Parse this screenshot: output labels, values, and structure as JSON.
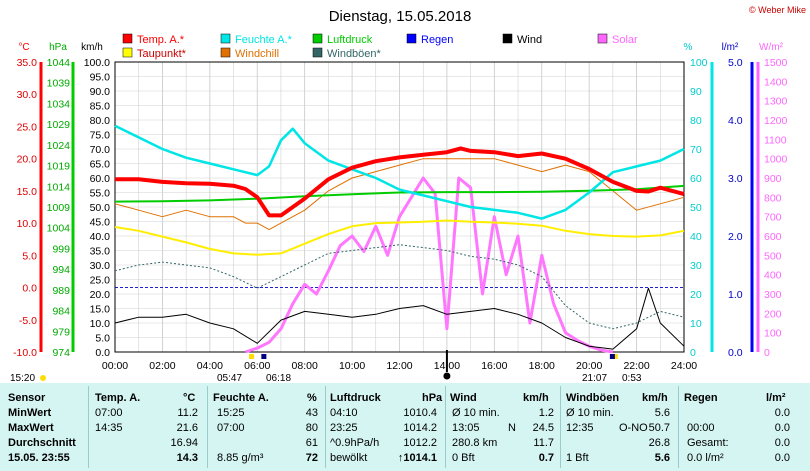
{
  "title": "Dienstag, 15.05.2018",
  "brand": "© Weber Mike",
  "legend": [
    {
      "label": "Temp. A.*",
      "color": "#ff0000"
    },
    {
      "label": "Feuchte A.*",
      "color": "#00e5e5"
    },
    {
      "label": "Luftdruck",
      "color": "#00cc00"
    },
    {
      "label": "Regen",
      "color": "#0000ff"
    },
    {
      "label": "Wind",
      "color": "#000000"
    },
    {
      "label": "Solar",
      "color": "#ff66ff"
    },
    {
      "label": "Taupunkt*",
      "color": "#ffff00"
    },
    {
      "label": "Windchill",
      "color": "#e07000"
    },
    {
      "label": "Windböen*",
      "color": "#336666"
    }
  ],
  "units": {
    "c": "°C",
    "hpa": "hPa",
    "kmh": "km/h",
    "pct": "%",
    "lm2": "l/m²",
    "wm2": "W/m²"
  },
  "chart_data": {
    "type": "line",
    "x_label_ticks": [
      "00:00",
      "02:00",
      "04:00",
      "06:00",
      "08:00",
      "10:00",
      "12:00",
      "14:00",
      "16:00",
      "18:00",
      "20:00",
      "22:00",
      "24:00"
    ],
    "axes": {
      "temp_c": {
        "ticks": [
          "35.0",
          "30.0",
          "25.0",
          "20.0",
          "15.0",
          "10.0",
          "5.0",
          "0.0",
          "-5.0",
          "-10.0"
        ],
        "range": [
          -10,
          35
        ]
      },
      "pressure_hpa": {
        "ticks": [
          "1044",
          "1039",
          "1034",
          "1029",
          "1024",
          "1019",
          "1014",
          "1009",
          "1004",
          "999",
          "994",
          "989",
          "984",
          "979",
          "974"
        ],
        "range": [
          974,
          1044
        ]
      },
      "wind_kmh": {
        "ticks": [
          "100.0",
          "95.0",
          "90.0",
          "85.0",
          "80.0",
          "75.0",
          "70.0",
          "65.0",
          "60.0",
          "55.0",
          "50.0",
          "45.0",
          "40.0",
          "35.0",
          "30.0",
          "25.0",
          "20.0",
          "15.0",
          "10.0",
          "5.0",
          "0.0"
        ],
        "range": [
          0,
          100
        ]
      },
      "humidity_pct": {
        "ticks": [
          "100",
          "90",
          "80",
          "70",
          "60",
          "50",
          "40",
          "30",
          "20",
          "10",
          "0"
        ],
        "range": [
          0,
          100
        ]
      },
      "rain_lm2": {
        "ticks": [
          "5.0",
          "4.0",
          "3.0",
          "2.0",
          "1.0",
          "0.0"
        ],
        "range": [
          0,
          5
        ]
      },
      "solar_wm2": {
        "ticks": [
          "1500",
          "1400",
          "1300",
          "1200",
          "1100",
          "1000",
          "900",
          "800",
          "700",
          "600",
          "500",
          "400",
          "300",
          "200",
          "100",
          "0"
        ],
        "range": [
          0,
          1500
        ]
      }
    },
    "series": [
      {
        "name": "Temp. A.*",
        "axis": "temp_c",
        "x": [
          0,
          1,
          2,
          3,
          4,
          5,
          5.5,
          6,
          6.5,
          7,
          8,
          9,
          10,
          11,
          12,
          13,
          14,
          14.58,
          15,
          16,
          17,
          18,
          19,
          20,
          21,
          22,
          22.5,
          23,
          24
        ],
        "y": [
          16.8,
          16.8,
          16.4,
          16.2,
          16.1,
          15.8,
          15.3,
          14.0,
          11.2,
          11.2,
          13.8,
          16.8,
          18.6,
          19.6,
          20.2,
          20.6,
          21.0,
          21.6,
          21.2,
          21.0,
          20.4,
          20.8,
          20.0,
          18.4,
          16.4,
          15.0,
          14.9,
          15.5,
          14.5
        ]
      },
      {
        "name": "Feuchte A.*",
        "axis": "humidity_pct",
        "x": [
          0,
          1,
          2,
          3,
          4,
          5,
          6,
          6.5,
          7,
          7.5,
          8,
          9,
          10,
          11,
          12,
          13,
          14,
          15,
          16,
          17,
          18,
          19,
          20,
          21,
          22,
          23,
          24
        ],
        "y": [
          78,
          74,
          70,
          67,
          65,
          63,
          61,
          64,
          73,
          77,
          72,
          66,
          63,
          60,
          56,
          54,
          52,
          50,
          49,
          48,
          46,
          49,
          55,
          62,
          64,
          66,
          70
        ]
      },
      {
        "name": "Luftdruck",
        "axis": "pressure_hpa",
        "x": [
          0,
          2,
          4,
          6,
          8,
          10,
          12,
          14,
          16,
          18,
          20,
          22,
          24
        ],
        "y": [
          1010.3,
          1010.4,
          1010.6,
          1011.0,
          1011.6,
          1012.1,
          1012.5,
          1012.6,
          1012.6,
          1012.7,
          1012.9,
          1013.3,
          1014.1
        ]
      },
      {
        "name": "Taupunkt*",
        "axis": "temp_c",
        "x": [
          0,
          1,
          2,
          3,
          4,
          5,
          6,
          7,
          8,
          9,
          10,
          11,
          12,
          13,
          14,
          15,
          16,
          17,
          18,
          19,
          20,
          21,
          22,
          23,
          24
        ],
        "y": [
          9.4,
          8.8,
          7.9,
          7.0,
          6.0,
          5.3,
          5.1,
          5.3,
          6.8,
          8.3,
          9.5,
          10.0,
          10.1,
          10.2,
          10.4,
          10.2,
          10.1,
          9.9,
          9.6,
          8.8,
          8.3,
          8.0,
          7.9,
          8.1,
          8.8
        ]
      },
      {
        "name": "Windchill",
        "axis": "temp_c",
        "x": [
          0,
          1,
          2,
          3,
          4,
          5,
          5.5,
          6,
          6.5,
          7,
          8,
          9,
          10,
          11,
          12,
          13,
          14,
          15,
          16,
          17,
          18,
          19,
          20,
          21,
          22,
          23,
          24
        ],
        "y": [
          13,
          12,
          11,
          12,
          11,
          11,
          10,
          10,
          9,
          10,
          12,
          15,
          17,
          18,
          19,
          20,
          20,
          20,
          20,
          19,
          18,
          19,
          18,
          15,
          12,
          13,
          14
        ]
      },
      {
        "name": "Wind",
        "axis": "wind_kmh",
        "x": [
          0,
          1,
          2,
          3,
          4,
          5,
          6,
          7,
          8,
          9,
          10,
          11,
          12,
          13,
          14,
          15,
          16,
          17,
          18,
          19,
          20,
          21,
          22,
          22.5,
          23,
          24
        ],
        "y": [
          10,
          12,
          12,
          13,
          10,
          8,
          3,
          11,
          14,
          13,
          12,
          13,
          15,
          16,
          13,
          14,
          15,
          13,
          10,
          5,
          2,
          1,
          8,
          22,
          10,
          2
        ]
      },
      {
        "name": "Windböen*",
        "axis": "wind_kmh",
        "x": [
          0,
          1,
          2,
          3,
          4,
          5,
          6,
          7,
          8,
          9,
          10,
          11,
          12,
          13,
          14,
          15,
          16,
          17,
          18,
          19,
          20,
          21,
          22,
          23,
          24
        ],
        "y": [
          28,
          30,
          31,
          30,
          29,
          26,
          22,
          26,
          30,
          34,
          35,
          36,
          37,
          36,
          35,
          33,
          32,
          30,
          26,
          16,
          10,
          8,
          10,
          14,
          12
        ]
      },
      {
        "name": "Solar",
        "axis": "solar_wm2",
        "x": [
          5.5,
          6,
          6.5,
          7,
          7.5,
          8,
          8.5,
          9,
          9.5,
          10,
          10.5,
          11,
          11.5,
          12,
          12.5,
          13,
          13.5,
          14,
          14.5,
          15,
          15.5,
          16,
          16.5,
          17,
          17.5,
          18,
          18.5,
          19,
          19.5,
          20,
          20.5,
          21
        ],
        "y": [
          0,
          20,
          50,
          120,
          250,
          350,
          300,
          420,
          550,
          600,
          520,
          650,
          500,
          700,
          800,
          900,
          820,
          120,
          900,
          850,
          300,
          700,
          400,
          600,
          150,
          500,
          250,
          100,
          60,
          30,
          10,
          0
        ]
      }
    ]
  },
  "footer_times": {
    "left_time": "15:20",
    "sunrise": "05:47",
    "sunrise2": "06:18",
    "sunset": "21:07",
    "sunset2": "0:53"
  },
  "table": {
    "col_sensor": "Sensor",
    "rows": [
      "MinWert",
      "MaxWert",
      "Durchschnitt",
      "15.05. 23:55"
    ],
    "temp": {
      "h": "Temp. A.",
      "u": "°C",
      "t": [
        "07:00",
        "14:35",
        "",
        ""
      ],
      "v": [
        "11.2",
        "21.6",
        "16.94",
        "14.3"
      ]
    },
    "hum": {
      "h": "Feuchte A.",
      "u": "%",
      "t": [
        "15:25",
        "07:00",
        "",
        "8.85 g/m³"
      ],
      "v": [
        "43",
        "80",
        "61",
        "72"
      ]
    },
    "press": {
      "h": "Luftdruck",
      "u": "hPa",
      "t": [
        "04:10",
        "23:25",
        "^0.9hPa/h",
        "bewölkt"
      ],
      "v": [
        "1010.4",
        "1014.2",
        "1012.2",
        "↑1014.1"
      ]
    },
    "wind": {
      "h": "Wind",
      "u": "km/h",
      "t": [
        "Ø 10 min.",
        "13:05",
        "280.8 km",
        "0 Bft"
      ],
      "m": [
        "",
        "N",
        "",
        ""
      ],
      "v": [
        "1.2",
        "24.5",
        "11.7",
        "0.7"
      ]
    },
    "gust": {
      "h": "Windböen",
      "u": "km/h",
      "t": [
        "Ø 10 min.",
        "12:35",
        "",
        "1 Bft"
      ],
      "m": [
        "",
        "O-NO",
        "",
        ""
      ],
      "v": [
        "5.6",
        "50.7",
        "26.8",
        "5.6"
      ]
    },
    "rain": {
      "h": "Regen",
      "u": "l/m²",
      "t": [
        "",
        "00:00",
        "Gesamt:",
        "0.0 l/m²"
      ],
      "v": [
        "0.0",
        "0.0",
        "0.0",
        "0.0"
      ]
    }
  }
}
